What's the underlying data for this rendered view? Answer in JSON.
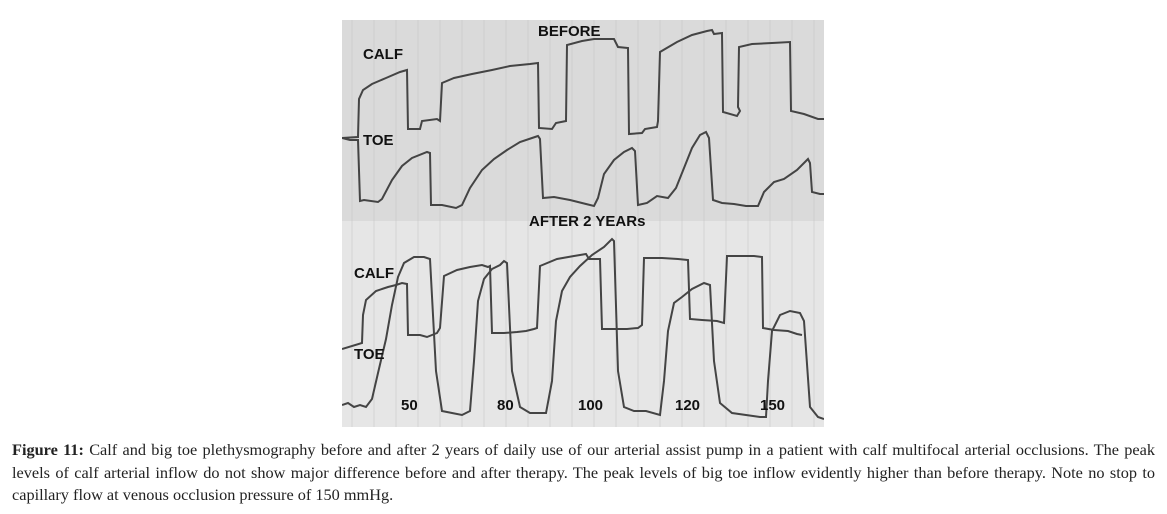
{
  "figure": {
    "before_panel": {
      "title": "BEFORE",
      "calf_label": "CALF",
      "toe_label": "TOE"
    },
    "after_panel": {
      "title": "AFTER 2 YEARs",
      "calf_label": "CALF",
      "toe_label": "TOE",
      "pressure_labels": [
        "50",
        "80",
        "100",
        "120",
        "150"
      ]
    },
    "colors": {
      "panel_before": "#dadada",
      "panel_after": "#e6e6e6",
      "trace": "#444444",
      "grid": "#c8c8c8"
    }
  },
  "caption": {
    "label": "Figure 11:",
    "text": "Calf and big toe plethysmography before and after 2 years of daily use of our arterial assist pump in a patient with calf multifocal arterial occlusions. The peak levels of calf arterial inflow do not show major difference before and after therapy. The peak levels of big toe inflow evidently higher than before therapy. Note no stop to capillary flow at venous occlusion pressure of 150 mmHg."
  }
}
